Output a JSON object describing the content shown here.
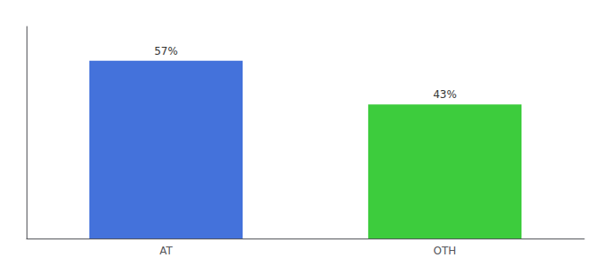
{
  "chart_data": {
    "type": "bar",
    "categories": [
      "AT",
      "OTH"
    ],
    "values": [
      57,
      43
    ],
    "colors": [
      "#4472db",
      "#3dcc3d"
    ],
    "value_labels": [
      "57%",
      "43%"
    ],
    "data_labels": true,
    "ylim": [
      0,
      68
    ],
    "tick_labels": "x",
    "grid": false
  }
}
